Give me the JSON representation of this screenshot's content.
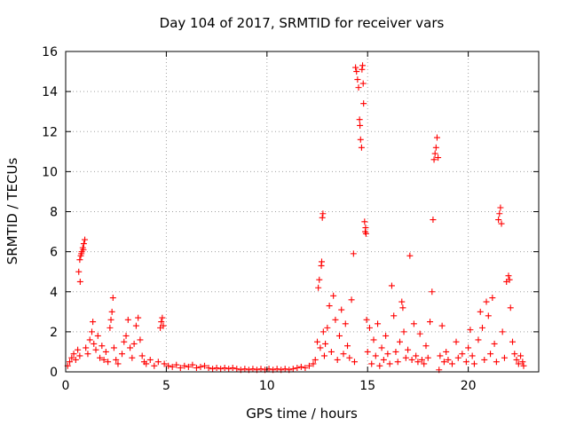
{
  "chart_data": {
    "type": "scatter",
    "title": "Day 104 of 2017, SRMTID for receiver vars",
    "xlabel": "GPS time / hours",
    "ylabel": "SRMTID / TECUs",
    "xlim": [
      0,
      23.5
    ],
    "ylim": [
      0,
      16
    ],
    "xticks": [
      0,
      5,
      10,
      15,
      20
    ],
    "yticks": [
      0,
      2,
      4,
      6,
      8,
      10,
      12,
      14,
      16
    ],
    "grid": true,
    "marker": "+",
    "color": "#ff0000",
    "series": [
      {
        "points": [
          [
            0.1,
            0.3
          ],
          [
            0.2,
            0.5
          ],
          [
            0.3,
            0.7
          ],
          [
            0.4,
            0.9
          ],
          [
            0.5,
            0.6
          ],
          [
            0.6,
            1.1
          ],
          [
            0.7,
            0.8
          ],
          [
            0.65,
            5.0
          ],
          [
            0.7,
            5.6
          ],
          [
            0.75,
            5.8
          ],
          [
            0.8,
            6.0
          ],
          [
            0.85,
            6.2
          ],
          [
            0.9,
            6.4
          ],
          [
            0.95,
            6.6
          ],
          [
            0.78,
            5.9
          ],
          [
            0.88,
            6.1
          ],
          [
            0.72,
            4.5
          ],
          [
            1.0,
            1.2
          ],
          [
            1.1,
            0.9
          ],
          [
            1.2,
            1.6
          ],
          [
            1.3,
            2.0
          ],
          [
            1.35,
            2.5
          ],
          [
            1.4,
            1.4
          ],
          [
            1.5,
            1.1
          ],
          [
            1.6,
            1.8
          ],
          [
            1.7,
            0.7
          ],
          [
            1.8,
            1.3
          ],
          [
            1.9,
            0.6
          ],
          [
            2.0,
            1.0
          ],
          [
            2.1,
            0.5
          ],
          [
            2.2,
            2.2
          ],
          [
            2.25,
            2.6
          ],
          [
            2.3,
            3.0
          ],
          [
            2.35,
            3.7
          ],
          [
            2.4,
            1.2
          ],
          [
            2.5,
            0.6
          ],
          [
            2.6,
            0.4
          ],
          [
            2.8,
            0.9
          ],
          [
            2.9,
            1.5
          ],
          [
            3.0,
            1.8
          ],
          [
            3.1,
            2.6
          ],
          [
            3.2,
            1.2
          ],
          [
            3.3,
            0.7
          ],
          [
            3.4,
            1.4
          ],
          [
            3.5,
            2.3
          ],
          [
            3.6,
            2.7
          ],
          [
            3.7,
            1.6
          ],
          [
            3.8,
            0.8
          ],
          [
            3.9,
            0.5
          ],
          [
            4.0,
            0.4
          ],
          [
            4.2,
            0.6
          ],
          [
            4.4,
            0.3
          ],
          [
            4.6,
            0.5
          ],
          [
            4.7,
            2.2
          ],
          [
            4.75,
            2.5
          ],
          [
            4.8,
            2.7
          ],
          [
            4.85,
            2.3
          ],
          [
            4.9,
            0.4
          ],
          [
            5.1,
            0.3
          ],
          [
            5.3,
            0.25
          ],
          [
            5.5,
            0.35
          ],
          [
            5.7,
            0.2
          ],
          [
            5.9,
            0.3
          ],
          [
            6.1,
            0.25
          ],
          [
            6.3,
            0.35
          ],
          [
            6.5,
            0.2
          ],
          [
            6.7,
            0.25
          ],
          [
            6.9,
            0.3
          ],
          [
            7.1,
            0.2
          ],
          [
            7.3,
            0.15
          ],
          [
            7.5,
            0.2
          ],
          [
            7.7,
            0.15
          ],
          [
            7.9,
            0.2
          ],
          [
            8.1,
            0.15
          ],
          [
            8.3,
            0.2
          ],
          [
            8.5,
            0.15
          ],
          [
            8.7,
            0.1
          ],
          [
            8.9,
            0.15
          ],
          [
            9.1,
            0.1
          ],
          [
            9.3,
            0.15
          ],
          [
            9.5,
            0.1
          ],
          [
            9.7,
            0.15
          ],
          [
            9.9,
            0.1
          ],
          [
            10.1,
            0.15
          ],
          [
            10.3,
            0.1
          ],
          [
            10.5,
            0.15
          ],
          [
            10.7,
            0.1
          ],
          [
            10.9,
            0.15
          ],
          [
            11.1,
            0.1
          ],
          [
            11.3,
            0.15
          ],
          [
            11.5,
            0.2
          ],
          [
            11.7,
            0.25
          ],
          [
            11.9,
            0.2
          ],
          [
            12.1,
            0.3
          ],
          [
            12.3,
            0.4
          ],
          [
            12.4,
            0.6
          ],
          [
            12.5,
            1.5
          ],
          [
            12.55,
            4.2
          ],
          [
            12.6,
            4.6
          ],
          [
            12.65,
            1.2
          ],
          [
            12.7,
            5.3
          ],
          [
            12.72,
            5.5
          ],
          [
            12.75,
            7.7
          ],
          [
            12.78,
            7.9
          ],
          [
            12.8,
            2.0
          ],
          [
            12.85,
            0.8
          ],
          [
            12.9,
            1.4
          ],
          [
            13.0,
            2.2
          ],
          [
            13.1,
            3.3
          ],
          [
            13.2,
            1.0
          ],
          [
            13.3,
            3.8
          ],
          [
            13.4,
            2.6
          ],
          [
            13.5,
            0.6
          ],
          [
            13.6,
            1.8
          ],
          [
            13.7,
            3.1
          ],
          [
            13.8,
            0.9
          ],
          [
            13.9,
            2.4
          ],
          [
            14.0,
            1.3
          ],
          [
            14.1,
            0.7
          ],
          [
            14.2,
            3.6
          ],
          [
            14.3,
            5.9
          ],
          [
            14.35,
            0.5
          ],
          [
            14.4,
            15.2
          ],
          [
            14.45,
            15.0
          ],
          [
            14.5,
            14.6
          ],
          [
            14.55,
            14.2
          ],
          [
            14.6,
            12.6
          ],
          [
            14.62,
            12.3
          ],
          [
            14.65,
            11.6
          ],
          [
            14.7,
            11.2
          ],
          [
            14.72,
            15.1
          ],
          [
            14.75,
            15.3
          ],
          [
            14.78,
            14.4
          ],
          [
            14.8,
            13.4
          ],
          [
            14.85,
            7.5
          ],
          [
            14.88,
            7.0
          ],
          [
            14.9,
            7.2
          ],
          [
            14.92,
            6.9
          ],
          [
            14.95,
            2.6
          ],
          [
            15.0,
            1.0
          ],
          [
            15.1,
            2.2
          ],
          [
            15.2,
            0.4
          ],
          [
            15.3,
            1.6
          ],
          [
            15.4,
            0.8
          ],
          [
            15.5,
            2.4
          ],
          [
            15.6,
            0.3
          ],
          [
            15.7,
            1.2
          ],
          [
            15.8,
            0.6
          ],
          [
            15.9,
            1.8
          ],
          [
            16.0,
            0.9
          ],
          [
            16.1,
            0.4
          ],
          [
            16.2,
            4.3
          ],
          [
            16.3,
            2.8
          ],
          [
            16.4,
            1.0
          ],
          [
            16.5,
            0.5
          ],
          [
            16.6,
            1.5
          ],
          [
            16.7,
            3.5
          ],
          [
            16.75,
            3.2
          ],
          [
            16.8,
            2.0
          ],
          [
            16.9,
            0.7
          ],
          [
            17.0,
            1.1
          ],
          [
            17.1,
            5.8
          ],
          [
            17.2,
            0.6
          ],
          [
            17.3,
            2.4
          ],
          [
            17.4,
            0.8
          ],
          [
            17.5,
            0.5
          ],
          [
            17.6,
            1.9
          ],
          [
            17.7,
            0.6
          ],
          [
            17.8,
            0.4
          ],
          [
            17.9,
            1.3
          ],
          [
            18.0,
            0.7
          ],
          [
            18.1,
            2.5
          ],
          [
            18.2,
            4.0
          ],
          [
            18.25,
            7.6
          ],
          [
            18.3,
            10.6
          ],
          [
            18.35,
            10.9
          ],
          [
            18.4,
            11.2
          ],
          [
            18.45,
            11.7
          ],
          [
            18.5,
            10.7
          ],
          [
            18.55,
            0.1
          ],
          [
            18.6,
            0.8
          ],
          [
            18.7,
            2.3
          ],
          [
            18.8,
            0.5
          ],
          [
            18.9,
            1.0
          ],
          [
            19.0,
            0.6
          ],
          [
            19.2,
            0.4
          ],
          [
            19.4,
            1.5
          ],
          [
            19.5,
            0.7
          ],
          [
            19.7,
            0.9
          ],
          [
            19.9,
            0.5
          ],
          [
            20.0,
            1.2
          ],
          [
            20.1,
            2.1
          ],
          [
            20.2,
            0.8
          ],
          [
            20.3,
            0.4
          ],
          [
            20.5,
            1.6
          ],
          [
            20.6,
            3.0
          ],
          [
            20.7,
            2.2
          ],
          [
            20.8,
            0.6
          ],
          [
            20.9,
            3.5
          ],
          [
            21.0,
            2.8
          ],
          [
            21.1,
            0.9
          ],
          [
            21.2,
            3.7
          ],
          [
            21.3,
            1.4
          ],
          [
            21.4,
            0.5
          ],
          [
            21.5,
            7.6
          ],
          [
            21.55,
            7.9
          ],
          [
            21.6,
            8.2
          ],
          [
            21.65,
            7.4
          ],
          [
            21.7,
            2.0
          ],
          [
            21.8,
            0.7
          ],
          [
            21.9,
            4.5
          ],
          [
            22.0,
            4.8
          ],
          [
            22.05,
            4.6
          ],
          [
            22.1,
            3.2
          ],
          [
            22.2,
            1.5
          ],
          [
            22.3,
            0.9
          ],
          [
            22.4,
            0.6
          ],
          [
            22.5,
            0.4
          ],
          [
            22.6,
            0.8
          ],
          [
            22.7,
            0.5
          ],
          [
            22.75,
            0.3
          ]
        ]
      }
    ]
  }
}
